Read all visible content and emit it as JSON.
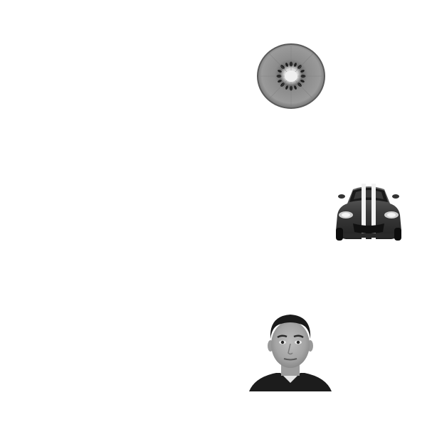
{
  "canvas": {
    "background": "#ffffff"
  },
  "stimuli": [
    {
      "name": "kiwi-slice-image",
      "kind": "grayscale photo",
      "subject": "kiwi-slice"
    },
    {
      "name": "sports-car-image",
      "kind": "grayscale photo",
      "subject": "sports-car-front-view"
    },
    {
      "name": "face-portrait-image",
      "kind": "grayscale photo",
      "subject": "male-face-portrait"
    }
  ]
}
